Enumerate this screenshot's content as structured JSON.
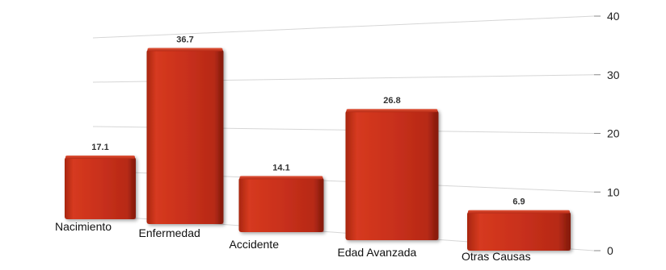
{
  "chart_data": {
    "type": "bar",
    "title": "",
    "xlabel": "",
    "ylabel": "",
    "categories": [
      "Nacimiento",
      "Enfermedad",
      "Accidente",
      "Edad Avanzada",
      "Otras Causas"
    ],
    "values": [
      17.1,
      36.7,
      14.1,
      26.8,
      6.9
    ],
    "value_labels": [
      "17.1",
      "36.7",
      "14.1",
      "26.8",
      "6.9"
    ],
    "ylim": [
      0,
      40
    ],
    "yticks": [
      "0",
      "10",
      "20",
      "30",
      "40"
    ],
    "y_axis_side": "right",
    "perspective": "3d",
    "grid": true,
    "legend": "none",
    "bar_color": "#c9301c",
    "bar_shadow_color": "#8e1f10"
  }
}
